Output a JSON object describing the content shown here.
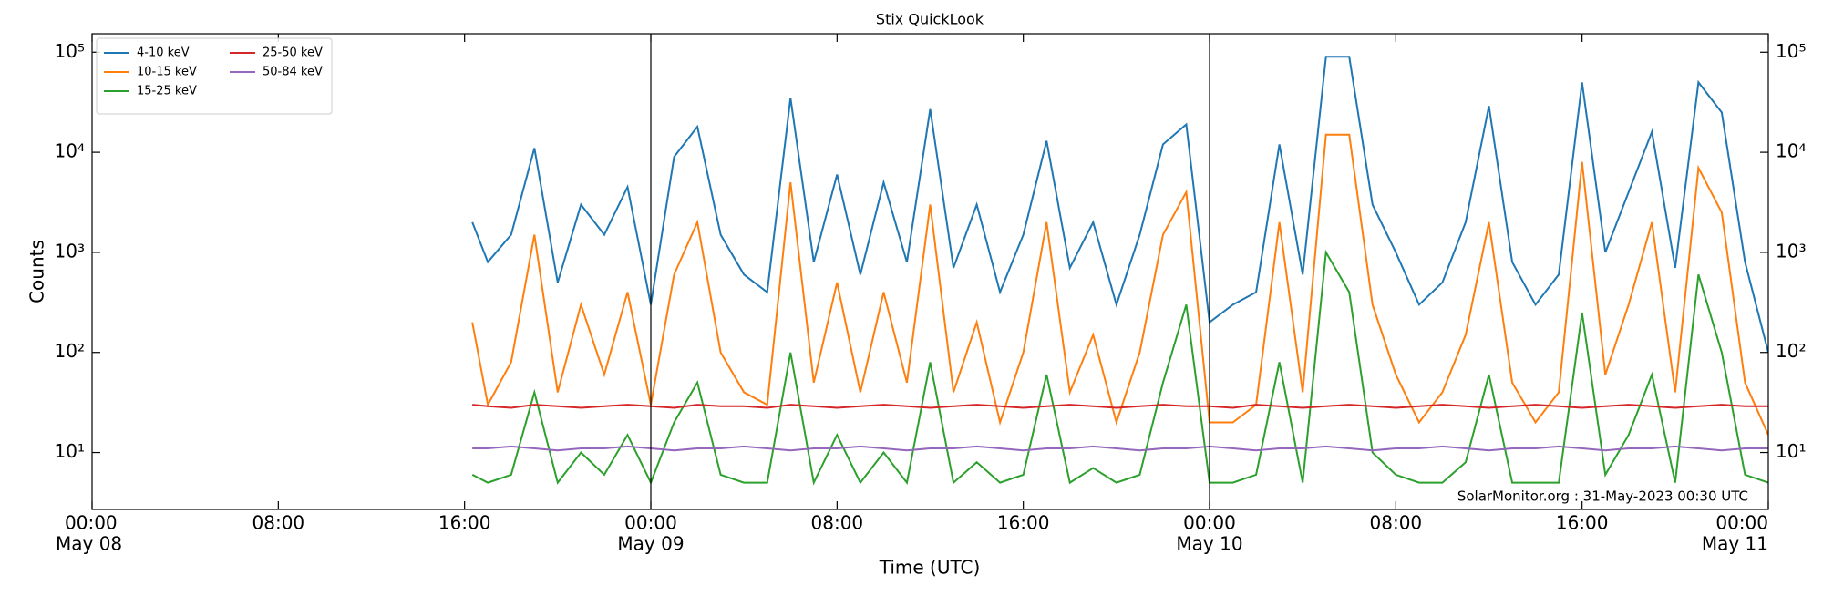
{
  "chart_data": {
    "type": "line",
    "title": "Stix QuickLook",
    "xlabel": "Time (UTC)",
    "ylabel": "Counts",
    "annotation": "SolarMonitor.org : 31-May-2023 00:30 UTC",
    "log_y": true,
    "legend": "upper left",
    "legend_columns": 2,
    "mirror_y_axis": true,
    "day_lines": [
      "May 09 00:00",
      "May 10 00:00"
    ],
    "xlim": [
      "May 08 00:00",
      "May 11 00:00"
    ],
    "xticks": [
      {
        "value": "May 08 00:00",
        "label": "00:00",
        "date": "May 08"
      },
      {
        "value": "May 08 08:00",
        "label": "08:00"
      },
      {
        "value": "May 08 16:00",
        "label": "16:00"
      },
      {
        "value": "May 09 00:00",
        "label": "00:00",
        "date": "May 09"
      },
      {
        "value": "May 09 08:00",
        "label": "08:00"
      },
      {
        "value": "May 09 16:00",
        "label": "16:00"
      },
      {
        "value": "May 10 00:00",
        "label": "00:00",
        "date": "May 10"
      },
      {
        "value": "May 10 08:00",
        "label": "08:00"
      },
      {
        "value": "May 10 16:00",
        "label": "16:00"
      },
      {
        "value": "May 11 00:00",
        "label": "00:00",
        "date": "May 11"
      }
    ],
    "ylim": [
      2.7,
      153000
    ],
    "yticks": [
      {
        "value": 10,
        "label": "10¹"
      },
      {
        "value": 100,
        "label": "10²"
      },
      {
        "value": 1000,
        "label": "10³"
      },
      {
        "value": 10000,
        "label": "10⁴"
      },
      {
        "value": 100000,
        "label": "10⁵"
      }
    ],
    "x": [
      "May 08 16:20",
      "May 08 17:00",
      "May 08 18:00",
      "May 08 19:00",
      "May 08 20:00",
      "May 08 21:00",
      "May 08 22:00",
      "May 08 23:00",
      "May 09 00:00",
      "May 09 01:00",
      "May 09 02:00",
      "May 09 03:00",
      "May 09 04:00",
      "May 09 05:00",
      "May 09 06:00",
      "May 09 07:00",
      "May 09 08:00",
      "May 09 09:00",
      "May 09 10:00",
      "May 09 11:00",
      "May 09 12:00",
      "May 09 13:00",
      "May 09 14:00",
      "May 09 15:00",
      "May 09 16:00",
      "May 09 17:00",
      "May 09 18:00",
      "May 09 19:00",
      "May 09 20:00",
      "May 09 21:00",
      "May 09 22:00",
      "May 09 23:00",
      "May 10 00:00",
      "May 10 01:00",
      "May 10 02:00",
      "May 10 03:00",
      "May 10 04:00",
      "May 10 05:00",
      "May 10 06:00",
      "May 10 07:00",
      "May 10 08:00",
      "May 10 09:00",
      "May 10 10:00",
      "May 10 11:00",
      "May 10 12:00",
      "May 10 13:00",
      "May 10 14:00",
      "May 10 15:00",
      "May 10 16:00",
      "May 10 17:00",
      "May 10 18:00",
      "May 10 19:00",
      "May 10 20:00",
      "May 10 21:00",
      "May 10 22:00",
      "May 10 23:00",
      "May 11 00:00"
    ],
    "series": [
      {
        "name": "4-10 keV",
        "color": "#1f77b4",
        "values": [
          2000,
          800,
          1500,
          11000,
          500,
          3000,
          1500,
          4500,
          300,
          9000,
          18000,
          1500,
          600,
          400,
          35000,
          800,
          6000,
          600,
          5000,
          800,
          27000,
          700,
          3000,
          400,
          1500,
          13000,
          700,
          2000,
          300,
          1500,
          12000,
          19000,
          200,
          300,
          400,
          12000,
          600,
          90000,
          90000,
          3000,
          1000,
          300,
          500,
          2000,
          29000,
          800,
          300,
          600,
          50000,
          1000,
          4000,
          16000,
          700,
          50000,
          25000,
          800,
          100
        ]
      },
      {
        "name": "10-15 keV",
        "color": "#ff7f0e",
        "values": [
          200,
          30,
          80,
          1500,
          40,
          300,
          60,
          400,
          30,
          600,
          2000,
          100,
          40,
          30,
          5000,
          50,
          500,
          40,
          400,
          50,
          3000,
          40,
          200,
          20,
          100,
          2000,
          40,
          150,
          20,
          100,
          1500,
          4000,
          20,
          20,
          30,
          2000,
          40,
          15000,
          15000,
          300,
          60,
          20,
          40,
          150,
          2000,
          50,
          20,
          40,
          8000,
          60,
          300,
          2000,
          40,
          7000,
          2500,
          50,
          15
        ]
      },
      {
        "name": "15-25 keV",
        "color": "#2ca02c",
        "values": [
          6,
          5,
          6,
          40,
          5,
          10,
          6,
          15,
          5,
          20,
          50,
          6,
          5,
          5,
          100,
          5,
          15,
          5,
          10,
          5,
          80,
          5,
          8,
          5,
          6,
          60,
          5,
          7,
          5,
          6,
          50,
          300,
          5,
          5,
          6,
          80,
          5,
          1000,
          400,
          10,
          6,
          5,
          5,
          8,
          60,
          5,
          5,
          5,
          250,
          6,
          15,
          60,
          5,
          600,
          100,
          6,
          5
        ]
      },
      {
        "name": "25-50 keV",
        "color": "#d62728",
        "values": [
          30,
          29,
          28,
          30,
          29,
          28,
          29,
          30,
          29,
          28,
          30,
          29,
          29,
          28,
          30,
          29,
          28,
          29,
          30,
          29,
          28,
          29,
          30,
          29,
          28,
          29,
          30,
          29,
          28,
          29,
          30,
          29,
          29,
          28,
          30,
          29,
          28,
          29,
          30,
          29,
          28,
          29,
          30,
          29,
          28,
          29,
          30,
          29,
          28,
          29,
          30,
          29,
          28,
          29,
          30,
          29,
          29
        ]
      },
      {
        "name": "50-84 keV",
        "color": "#9467bd",
        "values": [
          11,
          11,
          11.5,
          11,
          10.5,
          11,
          11,
          11.5,
          11,
          10.5,
          11,
          11,
          11.5,
          11,
          10.5,
          11,
          11,
          11.5,
          11,
          10.5,
          11,
          11,
          11.5,
          11,
          10.5,
          11,
          11,
          11.5,
          11,
          10.5,
          11,
          11,
          11.5,
          11,
          10.5,
          11,
          11,
          11.5,
          11,
          10.5,
          11,
          11,
          11.5,
          11,
          10.5,
          11,
          11,
          11.5,
          11,
          10.5,
          11,
          11,
          11.5,
          11,
          10.5,
          11,
          11
        ]
      }
    ]
  }
}
